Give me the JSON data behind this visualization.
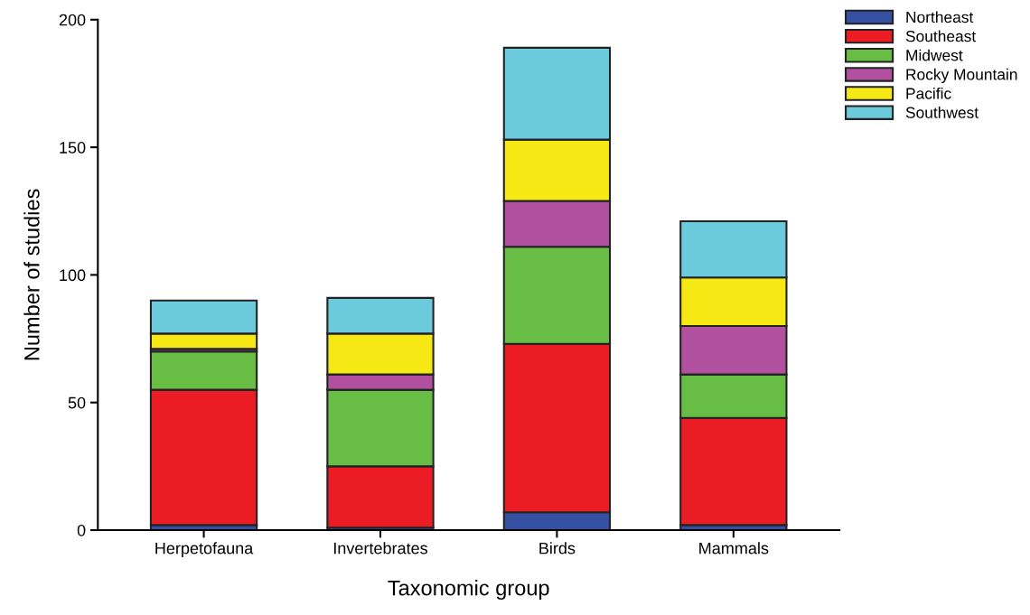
{
  "chart_data": {
    "type": "bar",
    "stacked": true,
    "xlabel": "Taxonomic group",
    "ylabel": "Number of studies",
    "categories": [
      "Herpetofauna",
      "Invertebrates",
      "Birds",
      "Mammals"
    ],
    "series": [
      {
        "name": "Northeast",
        "color": "#3550a0",
        "values": [
          2,
          1,
          7,
          2
        ]
      },
      {
        "name": "Southeast",
        "color": "#ec1c24",
        "values": [
          53,
          24,
          66,
          42
        ]
      },
      {
        "name": "Midwest",
        "color": "#68bd45",
        "values": [
          15,
          30,
          38,
          17
        ]
      },
      {
        "name": "Rocky Mountain",
        "color": "#b0509e",
        "values": [
          1,
          6,
          18,
          19
        ]
      },
      {
        "name": "Pacific",
        "color": "#f5e814",
        "values": [
          6,
          16,
          24,
          19
        ]
      },
      {
        "name": "Southwest",
        "color": "#6bcbdd",
        "values": [
          13,
          14,
          36,
          22
        ]
      }
    ],
    "ylim": [
      0,
      200
    ],
    "yticks": [
      0,
      50,
      100,
      150,
      200
    ],
    "grid": false,
    "legend": "top right"
  }
}
